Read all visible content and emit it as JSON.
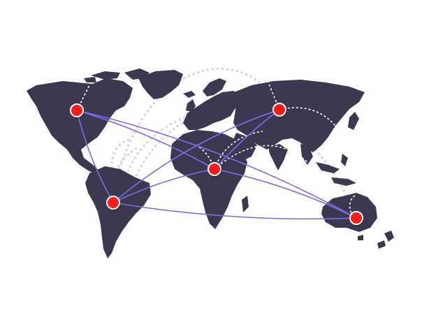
{
  "colors": {
    "background": "#ffffff",
    "land": "#3b3850",
    "route_line": "#7b6ee8",
    "dotted_arc": "#dedede",
    "dashed_link": "#ffffff",
    "node_fill": "#ff1a1a",
    "node_stroke": "#ffffff"
  },
  "icons": {
    "node": "red-location-dot-icon"
  },
  "hubs": [
    {
      "id": "north-america"
    },
    {
      "id": "south-america"
    },
    {
      "id": "africa"
    },
    {
      "id": "asia"
    },
    {
      "id": "australia"
    }
  ],
  "routes": [
    {
      "from": "north-america",
      "to": "south-america"
    },
    {
      "from": "north-america",
      "to": "africa"
    },
    {
      "from": "north-america",
      "to": "australia"
    },
    {
      "from": "south-america",
      "to": "asia"
    },
    {
      "from": "south-america",
      "to": "africa"
    },
    {
      "from": "south-america",
      "to": "australia"
    },
    {
      "from": "africa",
      "to": "asia"
    },
    {
      "from": "africa",
      "to": "australia"
    }
  ]
}
